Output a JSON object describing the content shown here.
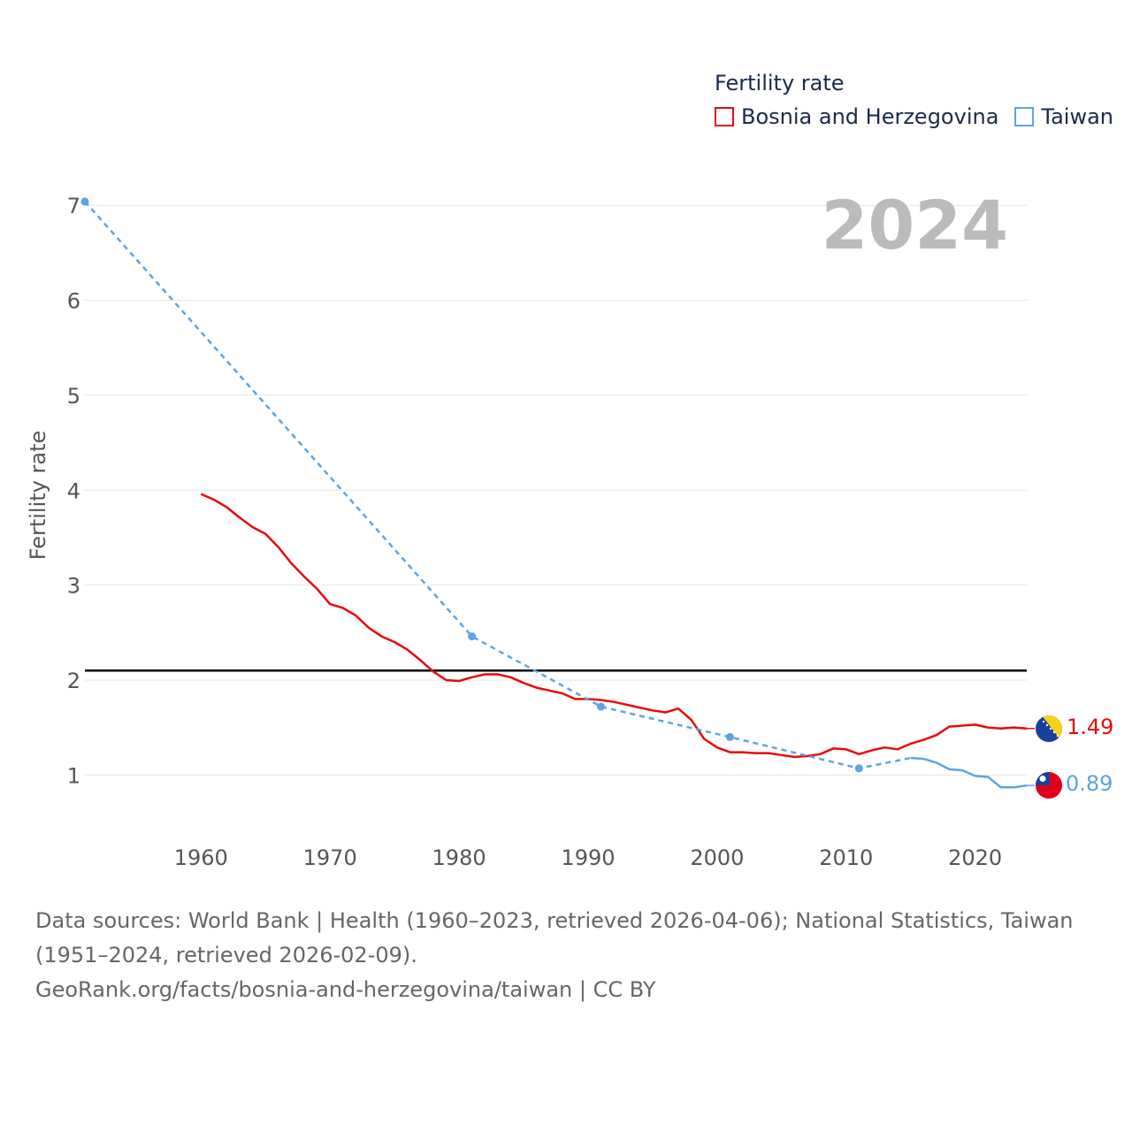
{
  "chart_data": {
    "type": "line",
    "title": "Fertility rate",
    "xlabel": "",
    "ylabel": "Fertility rate",
    "year_label": "2024",
    "xlim": [
      1951,
      2024
    ],
    "ylim": [
      0.5,
      7.3
    ],
    "x_ticks": [
      1960,
      1970,
      1980,
      1990,
      2000,
      2010,
      2020
    ],
    "y_ticks": [
      1,
      2,
      3,
      4,
      5,
      6,
      7
    ],
    "reference_line": 2.1,
    "grid": true,
    "legend_position": "top-right",
    "series": [
      {
        "name": "Bosnia and Herzegovina",
        "color": "#e8090c",
        "style": "solid",
        "end_label": "1.49",
        "flag": "bosnia-flag",
        "points": [
          [
            1960,
            3.96
          ],
          [
            1961,
            3.9
          ],
          [
            1962,
            3.82
          ],
          [
            1963,
            3.71
          ],
          [
            1964,
            3.61
          ],
          [
            1965,
            3.54
          ],
          [
            1966,
            3.4
          ],
          [
            1967,
            3.23
          ],
          [
            1968,
            3.09
          ],
          [
            1969,
            2.96
          ],
          [
            1970,
            2.8
          ],
          [
            1971,
            2.76
          ],
          [
            1972,
            2.68
          ],
          [
            1973,
            2.55
          ],
          [
            1974,
            2.46
          ],
          [
            1975,
            2.4
          ],
          [
            1976,
            2.32
          ],
          [
            1977,
            2.21
          ],
          [
            1978,
            2.09
          ],
          [
            1979,
            2.0
          ],
          [
            1980,
            1.99
          ],
          [
            1981,
            2.03
          ],
          [
            1982,
            2.06
          ],
          [
            1983,
            2.06
          ],
          [
            1984,
            2.03
          ],
          [
            1985,
            1.97
          ],
          [
            1986,
            1.92
          ],
          [
            1987,
            1.89
          ],
          [
            1988,
            1.86
          ],
          [
            1989,
            1.8
          ],
          [
            1990,
            1.8
          ],
          [
            1991,
            1.79
          ],
          [
            1992,
            1.77
          ],
          [
            1993,
            1.74
          ],
          [
            1994,
            1.71
          ],
          [
            1995,
            1.68
          ],
          [
            1996,
            1.66
          ],
          [
            1997,
            1.7
          ],
          [
            1998,
            1.58
          ],
          [
            1999,
            1.38
          ],
          [
            2000,
            1.29
          ],
          [
            2001,
            1.24
          ],
          [
            2002,
            1.24
          ],
          [
            2003,
            1.23
          ],
          [
            2004,
            1.23
          ],
          [
            2005,
            1.21
          ],
          [
            2006,
            1.19
          ],
          [
            2007,
            1.2
          ],
          [
            2008,
            1.22
          ],
          [
            2009,
            1.28
          ],
          [
            2010,
            1.27
          ],
          [
            2011,
            1.22
          ],
          [
            2012,
            1.26
          ],
          [
            2013,
            1.29
          ],
          [
            2014,
            1.27
          ],
          [
            2015,
            1.33
          ],
          [
            2016,
            1.37
          ],
          [
            2017,
            1.42
          ],
          [
            2018,
            1.51
          ],
          [
            2019,
            1.52
          ],
          [
            2020,
            1.53
          ],
          [
            2021,
            1.5
          ],
          [
            2022,
            1.49
          ],
          [
            2023,
            1.5
          ],
          [
            2024,
            1.49
          ]
        ]
      },
      {
        "name": "Taiwan",
        "color": "#5ba4e5",
        "end_label": "0.89",
        "flag": "taiwan-flag",
        "dashed_points": [
          [
            1951,
            7.04
          ],
          [
            1981,
            2.46
          ],
          [
            1991,
            1.72
          ],
          [
            2001,
            1.4
          ],
          [
            2011,
            1.07
          ],
          [
            2015,
            1.18
          ]
        ],
        "markers": [
          [
            1951,
            7.04
          ],
          [
            1981,
            2.46
          ],
          [
            1991,
            1.72
          ],
          [
            2001,
            1.4
          ],
          [
            2011,
            1.07
          ]
        ],
        "solid_points": [
          [
            2015,
            1.18
          ],
          [
            2016,
            1.17
          ],
          [
            2017,
            1.13
          ],
          [
            2018,
            1.06
          ],
          [
            2019,
            1.05
          ],
          [
            2020,
            0.99
          ],
          [
            2021,
            0.98
          ],
          [
            2022,
            0.87
          ],
          [
            2023,
            0.87
          ],
          [
            2024,
            0.89
          ]
        ]
      }
    ]
  },
  "source": {
    "line1": "Data sources: World Bank | Health (1960–2023, retrieved 2026-04-06); National Statistics, Taiwan (1951–2024, retrieved 2026-02-09).",
    "line2": "GeoRank.org/facts/bosnia-and-herzegovina/taiwan | CC BY"
  }
}
